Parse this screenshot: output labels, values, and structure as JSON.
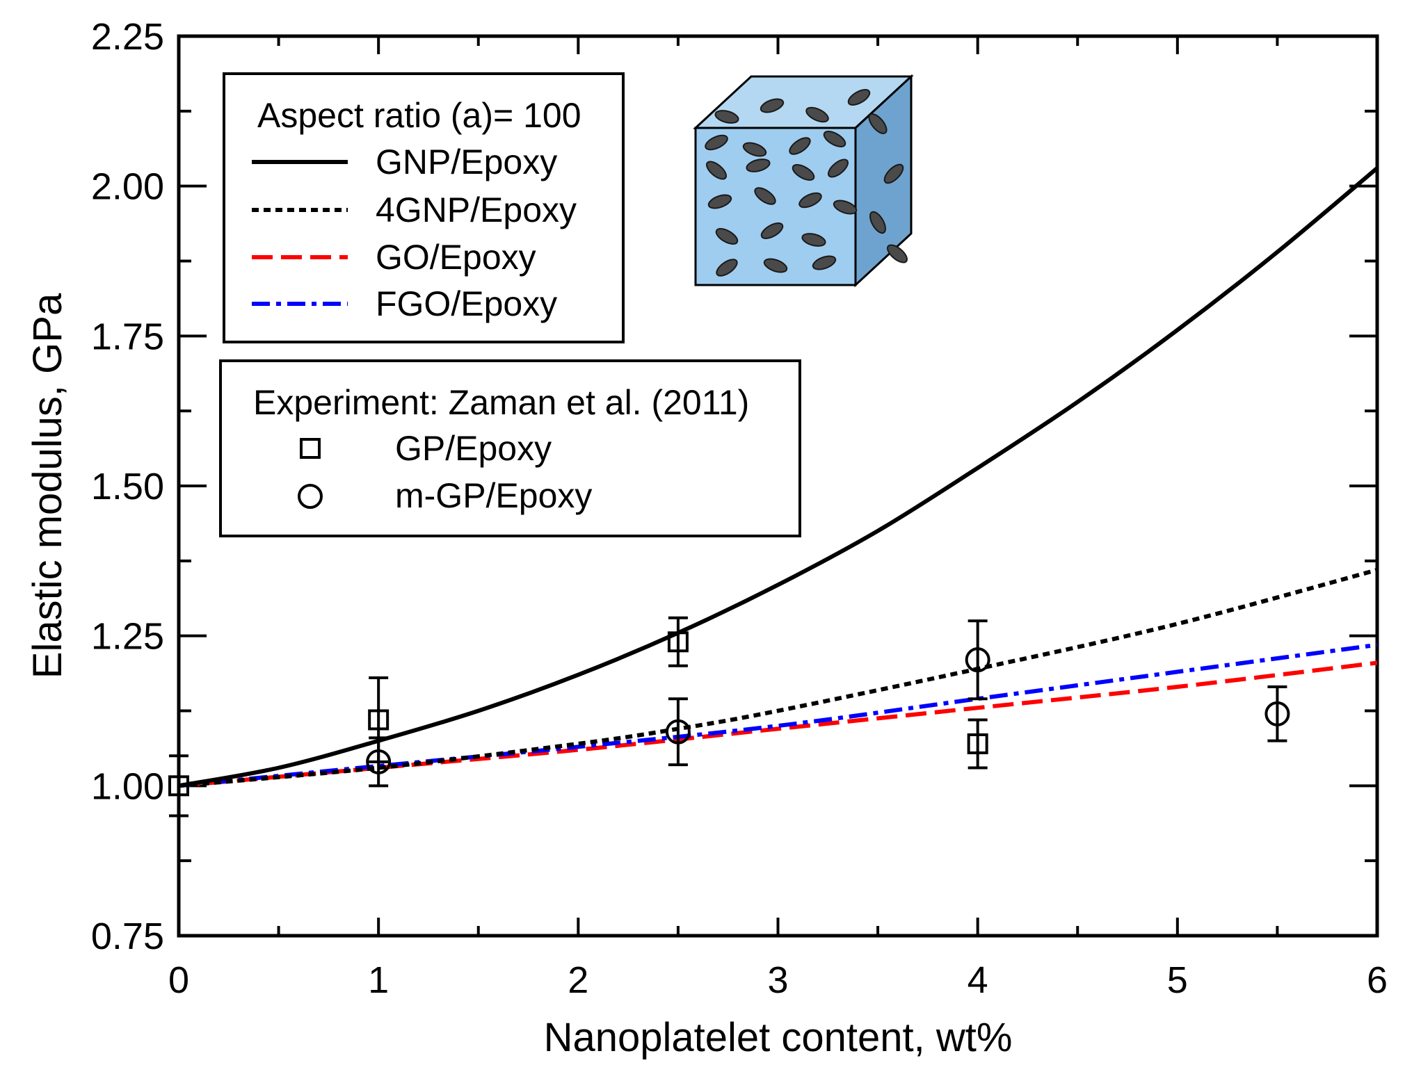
{
  "chart_data": {
    "type": "line",
    "xlabel": "Nanoplatelet content, wt%",
    "ylabel": "Elastic modulus, GPa",
    "xlim": [
      0,
      6
    ],
    "ylim": [
      0.75,
      2.25
    ],
    "x_ticks": [
      "0",
      "1",
      "2",
      "3",
      "4",
      "5",
      "6"
    ],
    "y_ticks": [
      "0.75",
      "1.00",
      "1.25",
      "1.50",
      "1.75",
      "2.00",
      "2.25"
    ],
    "grid": false,
    "model_legend": {
      "title": "Aspect ratio (a)= 100",
      "placement": "top-left"
    },
    "experiment_legend": {
      "title": "Experiment: Zaman et al. (2011)",
      "placement": "upper-left"
    },
    "series": [
      {
        "name": "GNP/Epoxy",
        "style": "solid",
        "color": "#000000",
        "x": [
          0,
          0.5,
          1,
          1.5,
          2,
          2.5,
          3,
          3.5,
          4,
          4.5,
          5,
          5.5,
          6
        ],
        "y": [
          1.0,
          1.03,
          1.075,
          1.125,
          1.185,
          1.255,
          1.335,
          1.425,
          1.53,
          1.64,
          1.76,
          1.89,
          2.03
        ]
      },
      {
        "name": "4GNP/Epoxy",
        "style": "dotted",
        "color": "#000000",
        "x": [
          0,
          1,
          2,
          2.5,
          3,
          4,
          5,
          6
        ],
        "y": [
          1.0,
          1.03,
          1.07,
          1.095,
          1.125,
          1.195,
          1.27,
          1.36
        ]
      },
      {
        "name": "GO/Epoxy",
        "style": "dashed",
        "color": "#ff0000",
        "x": [
          0,
          1,
          2,
          3,
          4,
          5,
          6
        ],
        "y": [
          1.0,
          1.03,
          1.06,
          1.095,
          1.13,
          1.165,
          1.205
        ]
      },
      {
        "name": "FGO/Epoxy",
        "style": "dashdot",
        "color": "#0000ff",
        "x": [
          0,
          1,
          2,
          3,
          4,
          5,
          6
        ],
        "y": [
          1.0,
          1.033,
          1.065,
          1.1,
          1.145,
          1.19,
          1.235
        ]
      }
    ],
    "experiments": [
      {
        "name": "GP/Epoxy",
        "marker": "square",
        "points": [
          {
            "x": 0,
            "y": 1.0,
            "err": 0.05
          },
          {
            "x": 1,
            "y": 1.11,
            "err": 0.07
          },
          {
            "x": 2.5,
            "y": 1.24,
            "err": 0.04
          },
          {
            "x": 4,
            "y": 1.07,
            "err": 0.04
          }
        ]
      },
      {
        "name": "m-GP/Epoxy",
        "marker": "circle",
        "points": [
          {
            "x": 1,
            "y": 1.04,
            "err": 0.04
          },
          {
            "x": 2.5,
            "y": 1.09,
            "err": 0.055
          },
          {
            "x": 4,
            "y": 1.21,
            "err": 0.065
          },
          {
            "x": 5.5,
            "y": 1.12,
            "err": 0.045
          }
        ]
      }
    ]
  }
}
